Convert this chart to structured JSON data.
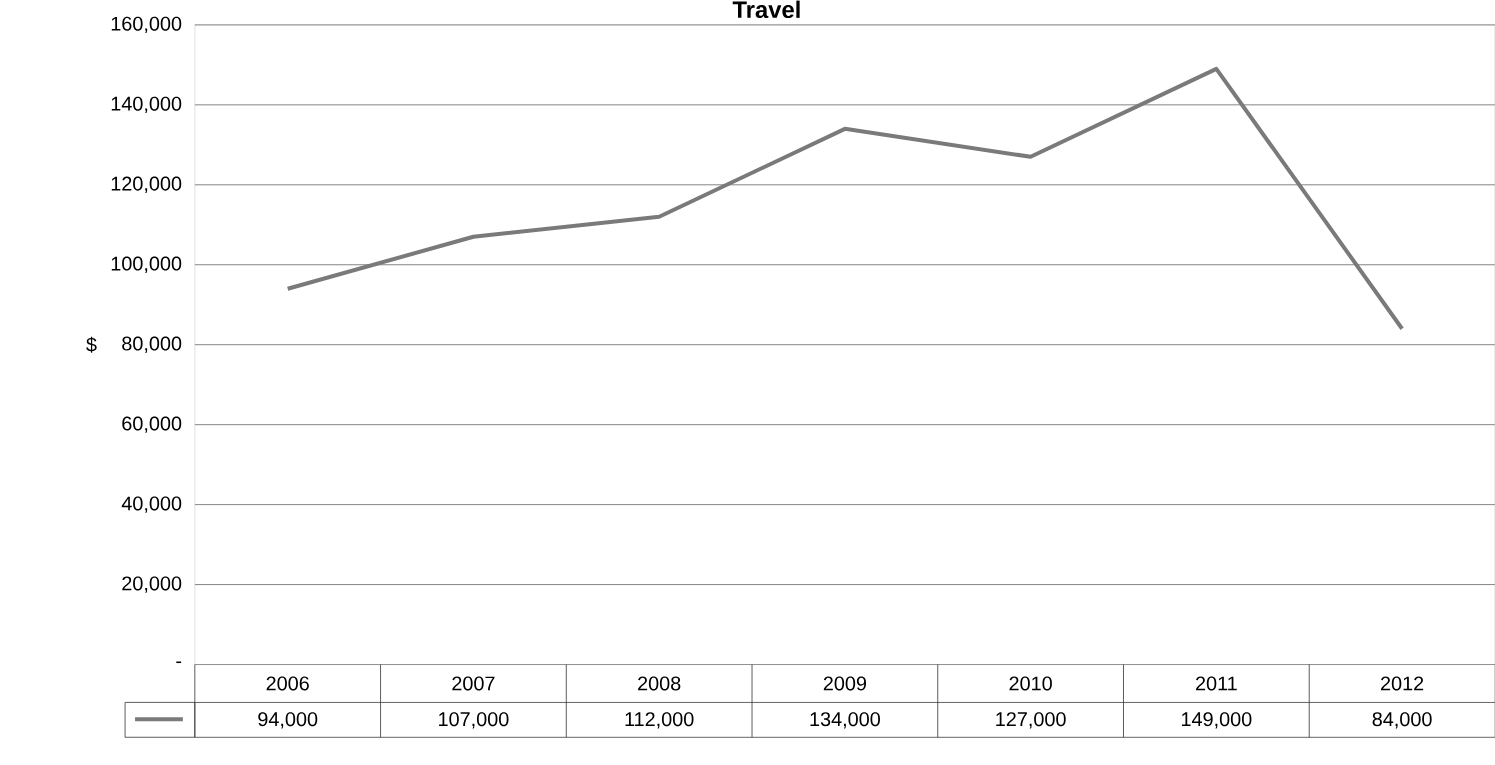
{
  "chart_data": {
    "type": "line",
    "title": "Travel",
    "ylabel": "$",
    "categories": [
      "2006",
      "2007",
      "2008",
      "2009",
      "2010",
      "2011",
      "2012"
    ],
    "series": [
      {
        "color": "#7a7a7a",
        "values": [
          94000,
          107000,
          112000,
          134000,
          127000,
          149000,
          84000
        ],
        "value_labels": [
          "94,000",
          "107,000",
          "112,000",
          "134,000",
          "127,000",
          "149,000",
          "84,000"
        ]
      }
    ],
    "ylim": [
      0,
      160000
    ],
    "yticks": [
      {
        "value": 0,
        "label": "-"
      },
      {
        "value": 20000,
        "label": "20,000"
      },
      {
        "value": 40000,
        "label": "40,000"
      },
      {
        "value": 60000,
        "label": "60,000"
      },
      {
        "value": 80000,
        "label": "80,000"
      },
      {
        "value": 100000,
        "label": "100,000"
      },
      {
        "value": 120000,
        "label": "120,000"
      },
      {
        "value": 140000,
        "label": "140,000"
      },
      {
        "value": 160000,
        "label": "160,000"
      }
    ],
    "grid": "y",
    "marker": "none",
    "line_style": "solid"
  }
}
